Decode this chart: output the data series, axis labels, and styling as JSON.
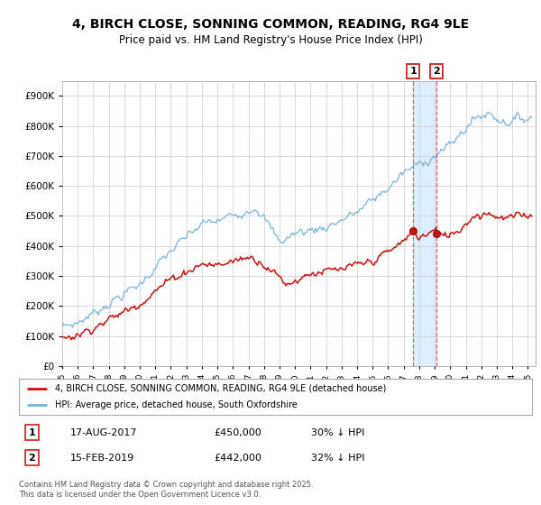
{
  "title": "4, BIRCH CLOSE, SONNING COMMON, READING, RG4 9LE",
  "subtitle": "Price paid vs. HM Land Registry's House Price Index (HPI)",
  "legend_line1": "4, BIRCH CLOSE, SONNING COMMON, READING, RG4 9LE (detached house)",
  "legend_line2": "HPI: Average price, detached house, South Oxfordshire",
  "transaction1_date": "17-AUG-2017",
  "transaction1_price": "£450,000",
  "transaction1_hpi": "30% ↓ HPI",
  "transaction2_date": "15-FEB-2019",
  "transaction2_price": "£442,000",
  "transaction2_hpi": "32% ↓ HPI",
  "footer": "Contains HM Land Registry data © Crown copyright and database right 2025.\nThis data is licensed under the Open Government Licence v3.0.",
  "hpi_color": "#7ab4d8",
  "price_color": "#cc1111",
  "vline_color": "#dd4444",
  "shade_color": "#ddeeff",
  "background_color": "#ffffff",
  "ylim": [
    0,
    950000
  ],
  "yticks": [
    0,
    100000,
    200000,
    300000,
    400000,
    500000,
    600000,
    700000,
    800000,
    900000
  ],
  "transaction1_x": 2017.625,
  "transaction2_x": 2019.125,
  "transaction1_y": 450000,
  "transaction2_y": 442000,
  "xlim_start": 1995.0,
  "xlim_end": 2025.5
}
